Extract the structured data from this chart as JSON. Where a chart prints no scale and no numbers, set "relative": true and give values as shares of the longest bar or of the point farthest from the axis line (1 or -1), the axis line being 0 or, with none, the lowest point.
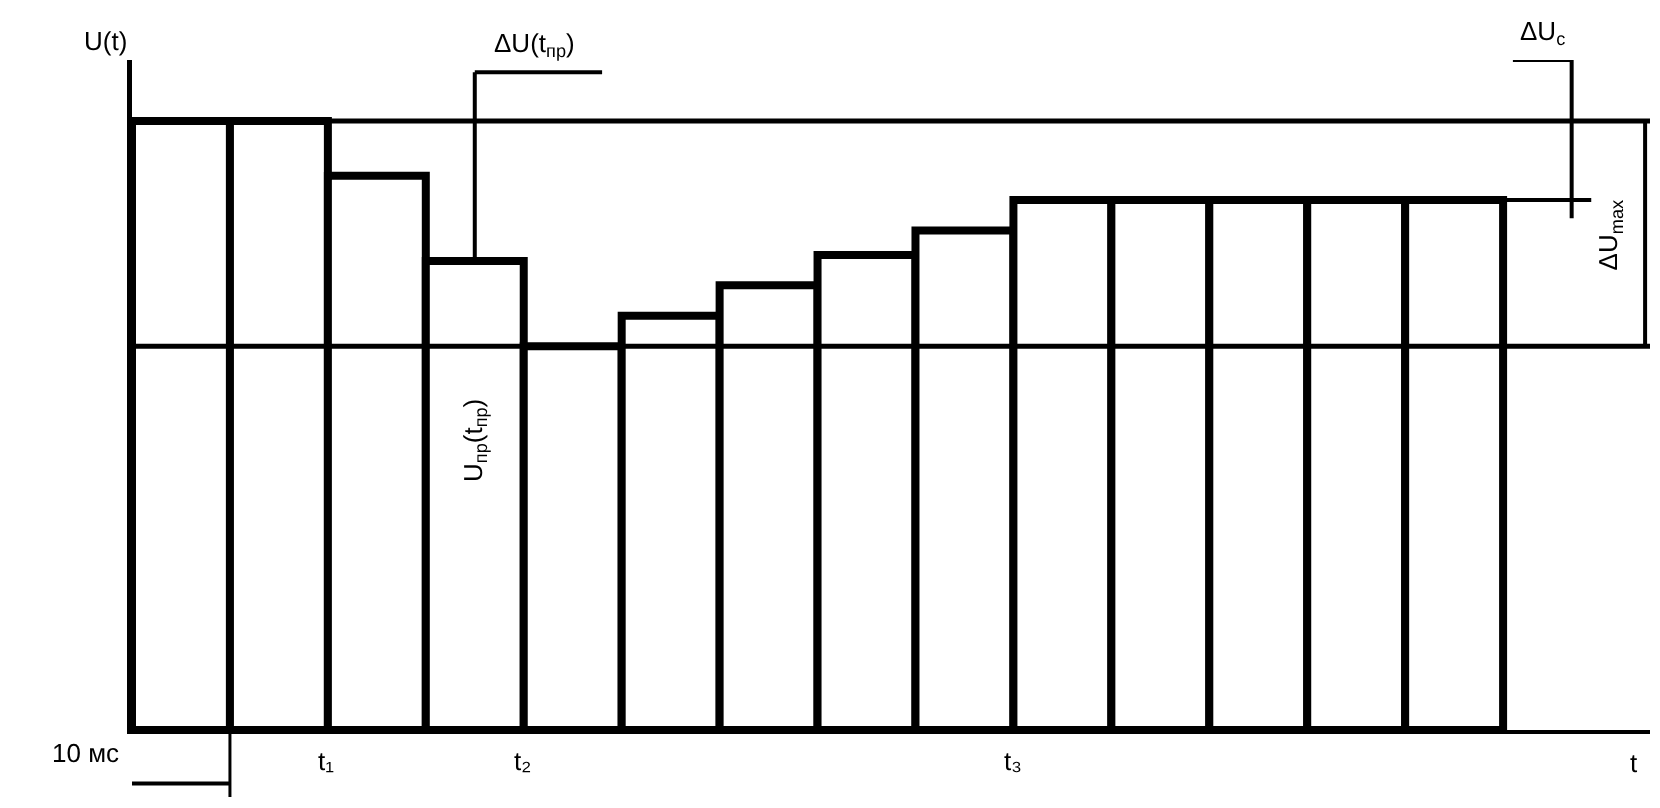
{
  "chart_data": {
    "type": "bar",
    "relative": true,
    "color": "#ffffff",
    "xlabel": "t",
    "ylabel": "U(t)",
    "categories": [
      null,
      null,
      null,
      null,
      null,
      null,
      null,
      null,
      null,
      null,
      null,
      null,
      null,
      null
    ],
    "values": [
      1,
      1,
      0.91,
      0.77,
      0.63,
      0.68,
      0.73,
      0.78,
      0.82,
      0.87,
      0.87,
      0.87,
      0.87,
      0.87
    ],
    "ref_lines": [
      {
        "axis": "y",
        "value": 1,
        "label": null
      },
      {
        "axis": "y",
        "value": 0.63,
        "label": null
      }
    ],
    "annotations": [
      "t₁",
      "t₂",
      "t₃",
      "10 мс",
      "ΔU(t$_{пр}$)",
      "U$_{пр}$(t$_{пр}$)",
      "ΔU$_{c}$",
      "ΔU$_{max}$"
    ],
    "grid": false
  }
}
